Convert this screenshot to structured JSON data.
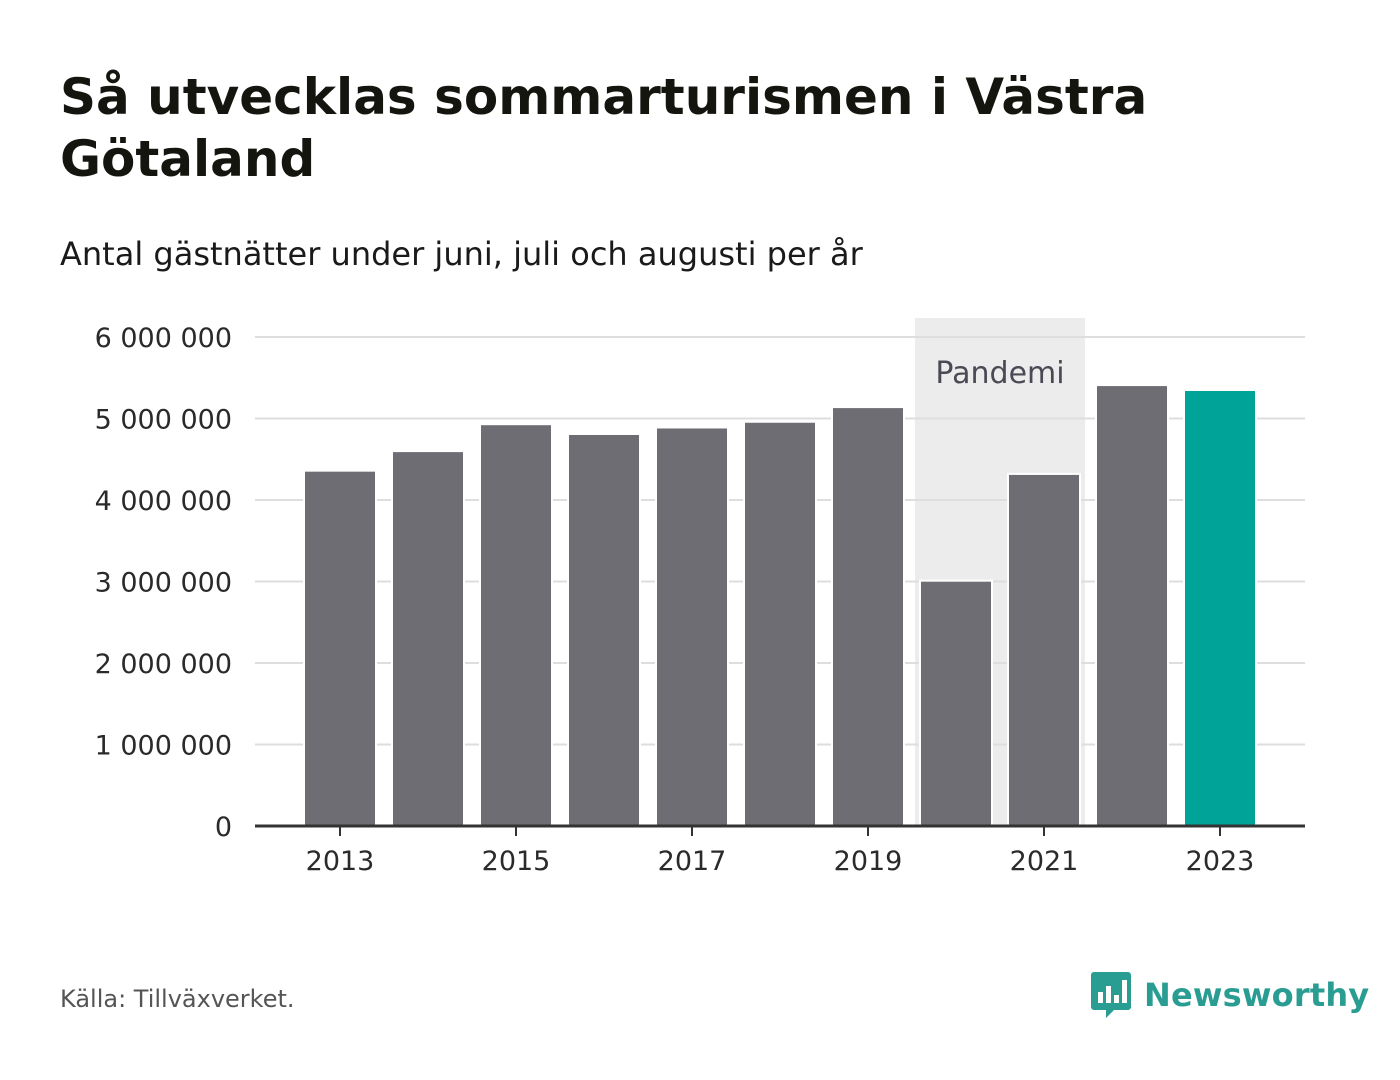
{
  "title": "Så utvecklas sommarturismen i Västra Götaland",
  "subtitle": "Antal gästnätter under juni, juli och augusti per år",
  "source": "Källa: Tillväxverket.",
  "brand": {
    "name": "Newsworthy",
    "color": "#2a9d93",
    "icon": "newsworthy-logo-icon"
  },
  "annotation": {
    "label": "Pandemi",
    "from_year": 2020,
    "to_year": 2021
  },
  "colors": {
    "bar": "#6e6d73",
    "highlight": "#00a398",
    "band": "#ececec",
    "grid": "#dedede",
    "axis": "#333333"
  },
  "chart_data": {
    "type": "bar",
    "categories": [
      2013,
      2014,
      2015,
      2016,
      2017,
      2018,
      2019,
      2020,
      2021,
      2022,
      2023
    ],
    "values": [
      4360000,
      4600000,
      4930000,
      4810000,
      4890000,
      4960000,
      5140000,
      3010000,
      4320000,
      5410000,
      5350000
    ],
    "highlight_category": 2023,
    "ylim": [
      0,
      6000000
    ],
    "yticks": [
      0,
      1000000,
      2000000,
      3000000,
      4000000,
      5000000,
      6000000
    ],
    "ytick_labels": [
      "0",
      "1 000 000",
      "2 000 000",
      "3 000 000",
      "4 000 000",
      "5 000 000",
      "6 000 000"
    ],
    "xtick_labels": [
      "2013",
      "2015",
      "2017",
      "2019",
      "2021",
      "2023"
    ],
    "xlabel": "",
    "ylabel": "",
    "grid": true
  }
}
